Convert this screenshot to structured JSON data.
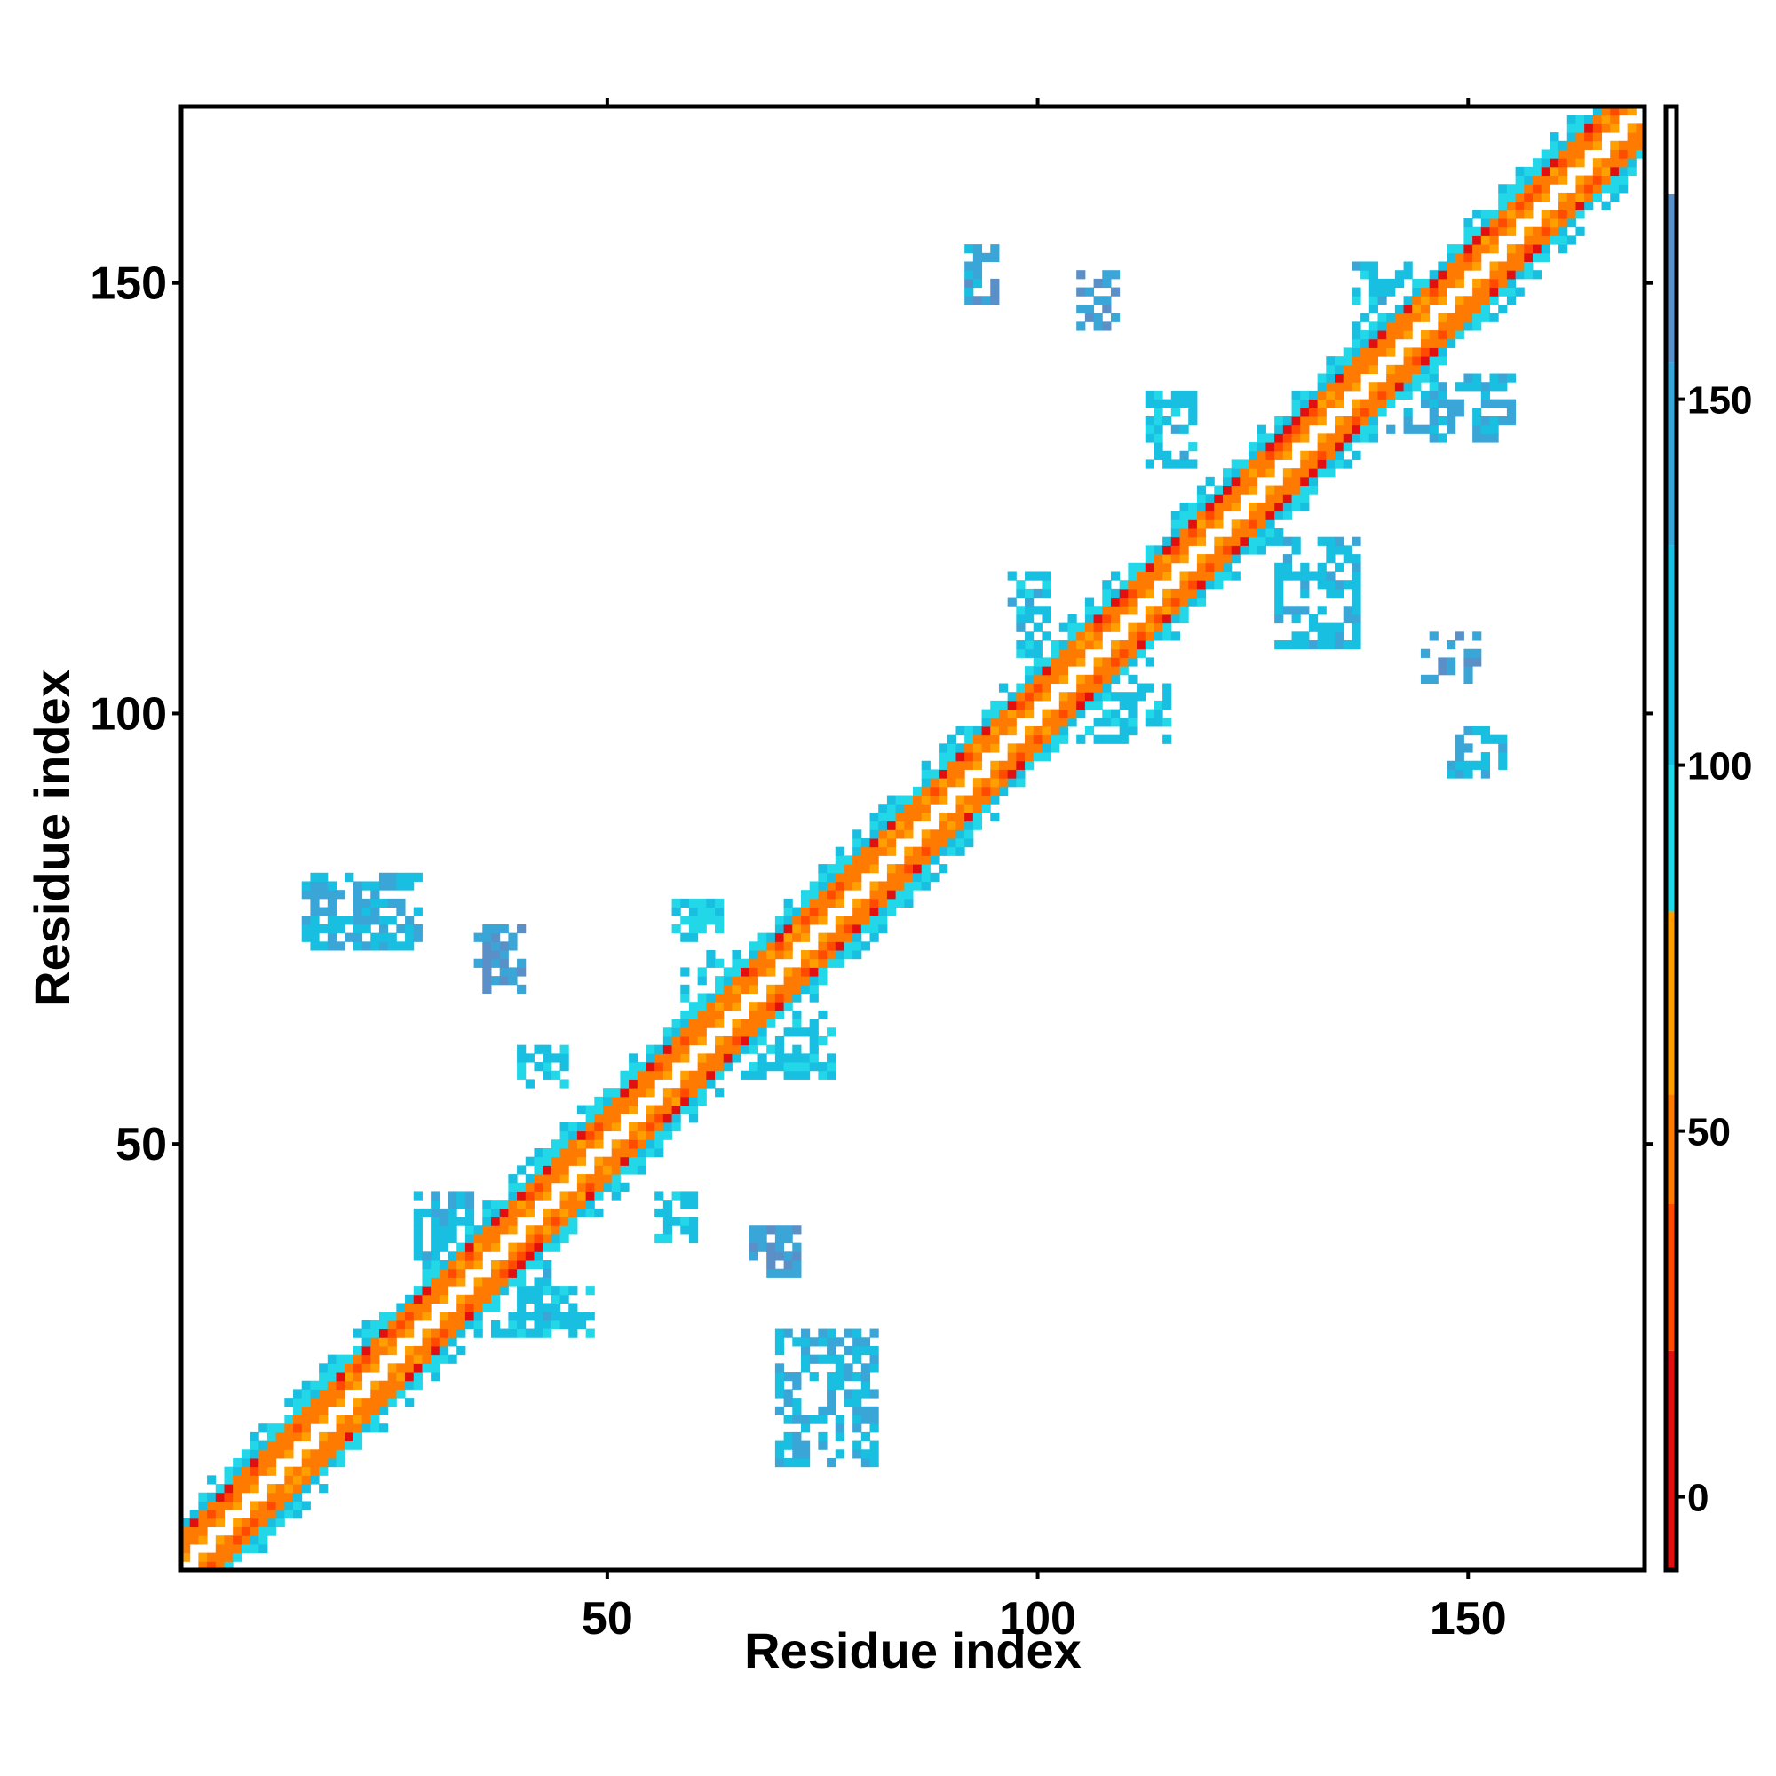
{
  "chart_data": {
    "type": "heatmap",
    "title": "",
    "xlabel": "Residue index",
    "ylabel": "Residue index",
    "xlim": [
      1,
      170
    ],
    "ylim": [
      1,
      170
    ],
    "x_ticks": [
      "50",
      "100",
      "150"
    ],
    "x_tick_values": [
      50,
      100,
      150
    ],
    "y_ticks": [
      "50",
      "100",
      "150"
    ],
    "y_tick_values": [
      50,
      100,
      150
    ],
    "colorbar": {
      "range": [
        -10,
        190
      ],
      "ticks": [
        "0",
        "50",
        "100",
        "150"
      ],
      "tick_values": [
        0,
        50,
        100,
        150
      ],
      "stops": [
        {
          "from": -10,
          "to": 20,
          "color": "#e01010"
        },
        {
          "from": 20,
          "to": 40,
          "color": "#ff4a00"
        },
        {
          "from": 40,
          "to": 55,
          "color": "#ff7a00"
        },
        {
          "from": 55,
          "to": 80,
          "color": "#ffa000"
        },
        {
          "from": 80,
          "to": 100,
          "color": "#22d8e8"
        },
        {
          "from": 100,
          "to": 130,
          "color": "#19bfe0"
        },
        {
          "from": 130,
          "to": 155,
          "color": "#3aa6d8"
        },
        {
          "from": 155,
          "to": 178,
          "color": "#5a8fc8"
        },
        {
          "from": 178,
          "to": 190,
          "color": "#ffffff"
        }
      ]
    },
    "diagonal_band": {
      "from": 1,
      "to": 170,
      "half_width": 7
    },
    "contact_clusters": [
      {
        "x": [
          92,
          95
        ],
        "y": [
          148,
          154
        ],
        "value": 140
      },
      {
        "x": [
          105,
          109
        ],
        "y": [
          145,
          151
        ],
        "value": 150
      },
      {
        "x": [
          113,
          118
        ],
        "y": [
          129,
          137
        ],
        "value": 115
      },
      {
        "x": [
          137,
          146
        ],
        "y": [
          138,
          152
        ],
        "value": 115
      },
      {
        "x": [
          140,
          155
        ],
        "y": [
          132,
          139
        ],
        "value": 130
      },
      {
        "x": [
          98,
          108
        ],
        "y": [
          100,
          108
        ],
        "value": 100
      },
      {
        "x": [
          97,
          101
        ],
        "y": [
          108,
          116
        ],
        "value": 115
      },
      {
        "x": [
          104,
          115
        ],
        "y": [
          97,
          103
        ],
        "value": 105
      },
      {
        "x": [
          128,
          137
        ],
        "y": [
          108,
          120
        ],
        "value": 120
      },
      {
        "x": [
          145,
          151
        ],
        "y": [
          104,
          109
        ],
        "value": 150
      },
      {
        "x": [
          148,
          154
        ],
        "y": [
          93,
          98
        ],
        "value": 120
      },
      {
        "x": [
          15,
          28
        ],
        "y": [
          73,
          81
        ],
        "value": 130
      },
      {
        "x": [
          35,
          40
        ],
        "y": [
          68,
          75
        ],
        "value": 150
      },
      {
        "x": [
          40,
          45
        ],
        "y": [
          57,
          61
        ],
        "value": 110
      },
      {
        "x": [
          58,
          63
        ],
        "y": [
          74,
          78
        ],
        "value": 100
      },
      {
        "x": [
          59,
          68
        ],
        "y": [
          64,
          72
        ],
        "value": 100
      },
      {
        "x": [
          66,
          76
        ],
        "y": [
          58,
          65
        ],
        "value": 110
      },
      {
        "x": [
          28,
          35
        ],
        "y": [
          33,
          44
        ],
        "value": 120
      },
      {
        "x": [
          35,
          43
        ],
        "y": [
          28,
          36
        ],
        "value": 115
      },
      {
        "x": [
          40,
          48
        ],
        "y": [
          28,
          33
        ],
        "value": 110
      },
      {
        "x": [
          56,
          60
        ],
        "y": [
          39,
          44
        ],
        "value": 110
      },
      {
        "x": [
          67,
          72
        ],
        "y": [
          35,
          40
        ],
        "value": 150
      },
      {
        "x": [
          70,
          81
        ],
        "y": [
          13,
          28
        ],
        "value": 130
      }
    ]
  }
}
